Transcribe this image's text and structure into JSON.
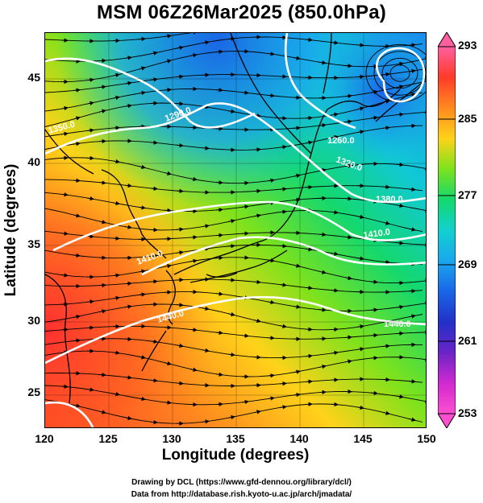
{
  "title": "MSM 06Z26Mar2025 (850.0hPa)",
  "axes": {
    "xlabel": "Longitude (degrees)",
    "ylabel": "Latitude  (degrees)",
    "xticks": [
      "120",
      "125",
      "130",
      "135",
      "140",
      "145",
      "150"
    ],
    "yticks": [
      "45",
      "40",
      "35",
      "30",
      "25"
    ]
  },
  "contour_labels": [
    "1260.0",
    "1320.0",
    "1380.0",
    "1410.0",
    "1410.0",
    "1440.0",
    "1440.0",
    "1350.0",
    "1290.0"
  ],
  "colorbar": {
    "ticks": [
      "293",
      "285",
      "277",
      "269",
      "261",
      "253"
    ],
    "colors": [
      "#ff5fa0",
      "#ff3b2a",
      "#ff8a1e",
      "#ffd21a",
      "#7de21c",
      "#14d86e",
      "#11d0cf",
      "#1aa8ee",
      "#1a66e6",
      "#2230c8",
      "#6a24c6",
      "#d02ad0",
      "#ff4fd0"
    ]
  },
  "credits": {
    "line1": "Drawing by DCL (https://www.gfd-dennou.org/library/dcl/)",
    "line2": "Data from http://database.rish.kyoto-u.ac.jp/arch/jmadata/"
  }
}
